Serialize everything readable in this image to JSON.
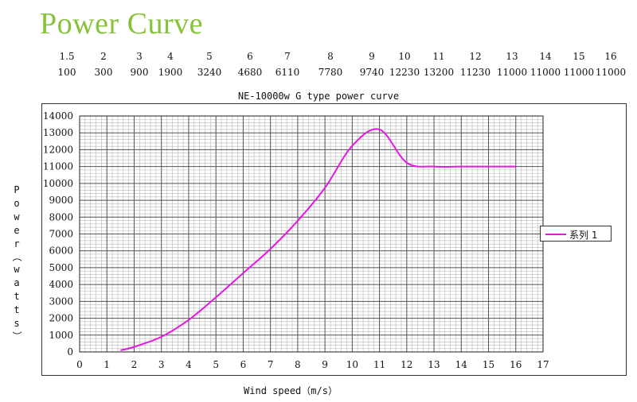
{
  "title": "Power Curve",
  "table": {
    "speeds": [
      "1.5",
      "2",
      "3",
      "4",
      "5",
      "6",
      "7",
      "8",
      "9",
      "10",
      "11",
      "12",
      "13",
      "14",
      "15",
      "16"
    ],
    "powers": [
      "100",
      "300",
      "900",
      "1900",
      "3240",
      "4680",
      "6110",
      "7780",
      "9740",
      "12230",
      "13200",
      "11230",
      "11000",
      "11000",
      "11000",
      "11000"
    ]
  },
  "colors": {
    "series": "#e815e8",
    "title": "#86c23a"
  },
  "chart_data": {
    "type": "line",
    "title": "NE-10000w G type power curve",
    "xlabel": "Wind speed（m/s）",
    "ylabel": "Power（watts）",
    "xlim": [
      0,
      17
    ],
    "ylim": [
      0,
      14000
    ],
    "xticks": [
      "0",
      "1",
      "2",
      "3",
      "4",
      "5",
      "6",
      "7",
      "8",
      "9",
      "10",
      "11",
      "12",
      "13",
      "14",
      "15",
      "16",
      "17"
    ],
    "yticks": [
      "0",
      "1000",
      "2000",
      "3000",
      "4000",
      "5000",
      "6000",
      "7000",
      "8000",
      "9000",
      "10000",
      "11000",
      "12000",
      "13000",
      "14000"
    ],
    "grid": true,
    "legend_position": "right",
    "series": [
      {
        "name": "系列 1",
        "x": [
          1.5,
          2,
          3,
          4,
          5,
          6,
          7,
          8,
          9,
          10,
          11,
          12,
          13,
          14,
          15,
          16
        ],
        "y": [
          100,
          300,
          900,
          1900,
          3240,
          4680,
          6110,
          7780,
          9740,
          12230,
          13200,
          11230,
          11000,
          11000,
          11000,
          11000
        ]
      }
    ]
  }
}
